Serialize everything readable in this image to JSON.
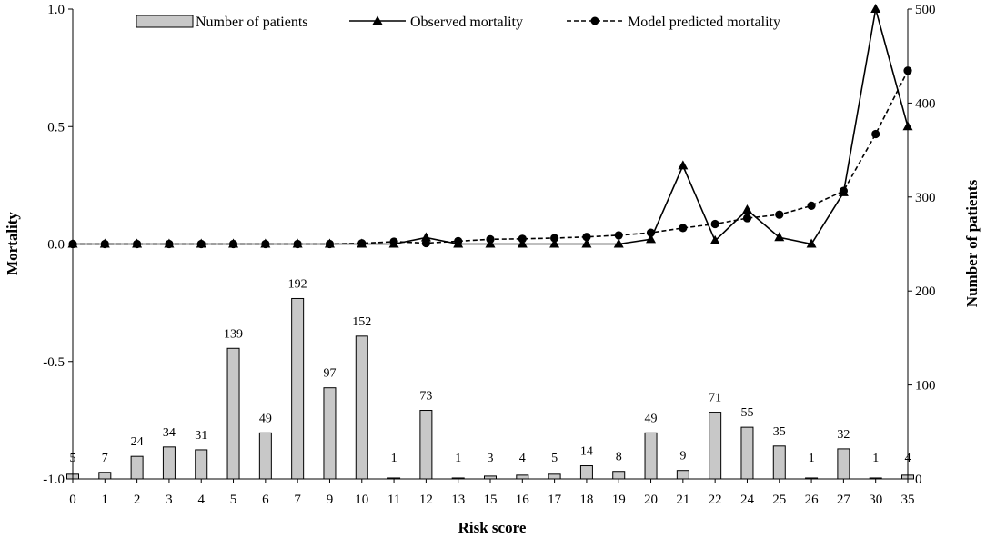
{
  "chart_data": {
    "type": "combo-bar-line",
    "categories": [
      "0",
      "1",
      "2",
      "3",
      "4",
      "5",
      "6",
      "7",
      "9",
      "10",
      "11",
      "12",
      "13",
      "15",
      "16",
      "17",
      "18",
      "19",
      "20",
      "21",
      "22",
      "24",
      "25",
      "26",
      "27",
      "30",
      "35"
    ],
    "series": [
      {
        "name": "Number of patients",
        "kind": "bar",
        "axis": "right",
        "values": [
          5,
          7,
          24,
          34,
          31,
          139,
          49,
          192,
          97,
          152,
          1,
          73,
          1,
          3,
          4,
          5,
          14,
          8,
          49,
          9,
          71,
          55,
          35,
          1,
          32,
          1,
          4
        ]
      },
      {
        "name": "Observed mortality",
        "kind": "line",
        "marker": "triangle",
        "axis": "left",
        "values": [
          0,
          0,
          0,
          0,
          0,
          0,
          0,
          0,
          0,
          0,
          0,
          0.027,
          0,
          0,
          0,
          0,
          0,
          0,
          0.02,
          0.333,
          0.014,
          0.145,
          0.028,
          0,
          0.219,
          1.0,
          0.5
        ]
      },
      {
        "name": "Model predicted mortality",
        "kind": "line",
        "dashed": true,
        "marker": "circle",
        "axis": "left",
        "values": [
          0,
          0,
          0,
          0,
          0,
          0,
          0,
          0,
          0,
          0.003,
          0.01,
          0.004,
          0.012,
          0.02,
          0.022,
          0.025,
          0.03,
          0.037,
          0.048,
          0.068,
          0.085,
          0.11,
          0.125,
          0.163,
          0.226,
          0.468,
          0.738
        ]
      }
    ],
    "xlabel": "Risk score",
    "ylabel": "Mortality",
    "y2label": "Number of patients",
    "ylim": [
      -1.0,
      1.0
    ],
    "y2lim": [
      0,
      500
    ],
    "yticks": [
      {
        "value": 1.0,
        "label": "1.0"
      },
      {
        "value": 0.5,
        "label": "0.5"
      },
      {
        "value": 0.0,
        "label": "0.0"
      },
      {
        "value": -0.5,
        "label": "-0.5"
      },
      {
        "value": -1.0,
        "label": "-1.0"
      }
    ],
    "y2ticks": [
      {
        "value": 500,
        "label": "500"
      },
      {
        "value": 400,
        "label": "400"
      },
      {
        "value": 300,
        "label": "300"
      },
      {
        "value": 200,
        "label": "200"
      },
      {
        "value": 100,
        "label": "100"
      },
      {
        "value": 0,
        "label": "0"
      }
    ],
    "bar_labels": [
      "5",
      "7",
      "24",
      "34",
      "31",
      "139",
      "49",
      "192",
      "97",
      "152",
      "1",
      "73",
      "1",
      "3",
      "4",
      "5",
      "14",
      "8",
      "49",
      "9",
      "71",
      "55",
      "35",
      "1",
      "32",
      "1",
      "4"
    ],
    "legend_position": "top-center",
    "grid": false
  },
  "colors": {
    "bar_fill": "#c8c8c8",
    "bar_stroke": "#000000",
    "line": "#000000",
    "axis": "#000000"
  }
}
